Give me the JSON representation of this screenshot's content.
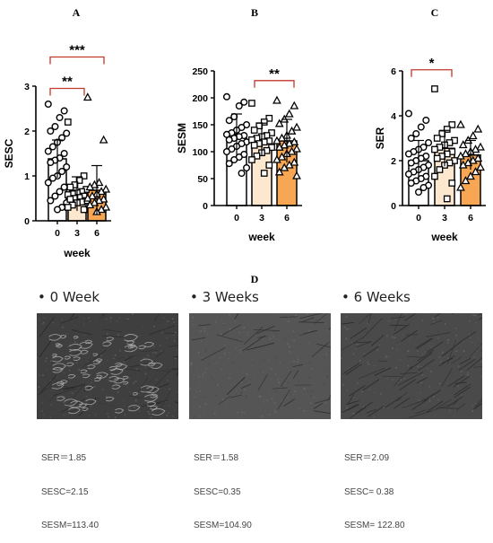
{
  "chart_data": [
    {
      "panel": "A",
      "type": "bar",
      "ylabel": "SESC",
      "xlabel": "week",
      "ylim": [
        0,
        3
      ],
      "yticks": [
        0,
        1,
        2,
        3
      ],
      "categories": [
        "0",
        "3",
        "6"
      ],
      "values": [
        1.38,
        0.6,
        0.68
      ],
      "errors": [
        0.42,
        0.38,
        0.55
      ],
      "marker": [
        "circle",
        "square",
        "triangle"
      ],
      "fill": [
        "#ffffff",
        "#fde7cf",
        "#f7a654"
      ],
      "points": [
        [
          2.6,
          2.45,
          2.3,
          2.1,
          2.0,
          1.95,
          1.85,
          1.75,
          1.65,
          1.55,
          1.5,
          1.4,
          1.35,
          1.3,
          1.2,
          1.1,
          1.0,
          0.95,
          0.85,
          0.75,
          0.65,
          0.55,
          0.45,
          0.4,
          0.3,
          0.25
        ],
        [
          2.2,
          1.0,
          0.9,
          0.8,
          0.75,
          0.7,
          0.65,
          0.62,
          0.6,
          0.58,
          0.55,
          0.52,
          0.5,
          0.48,
          0.45,
          0.42,
          0.4,
          0.35,
          0.3,
          0.25
        ],
        [
          2.75,
          1.8,
          0.85,
          0.8,
          0.75,
          0.7,
          0.65,
          0.6,
          0.55,
          0.5,
          0.48,
          0.45,
          0.4,
          0.35,
          0.3,
          0.25,
          0.2
        ]
      ],
      "significance": [
        {
          "from": 0,
          "to": 1,
          "label": "**",
          "y": 2.95
        },
        {
          "from": 0,
          "to": 2,
          "label": "***",
          "y": 3.65
        }
      ]
    },
    {
      "panel": "B",
      "type": "bar",
      "ylabel": "SESM",
      "xlabel": "week",
      "ylim": [
        0,
        250
      ],
      "yticks": [
        0,
        50,
        100,
        150,
        200,
        250
      ],
      "categories": [
        "0",
        "3",
        "6"
      ],
      "values": [
        132,
        123,
        120
      ],
      "errors": [
        38,
        30,
        40
      ],
      "marker": [
        "circle",
        "square",
        "triangle"
      ],
      "fill": [
        "#ffffff",
        "#fde7cf",
        "#f7a654"
      ],
      "points": [
        [
          202,
          192,
          185,
          165,
          158,
          150,
          145,
          140,
          135,
          132,
          130,
          128,
          125,
          122,
          118,
          115,
          110,
          105,
          100,
          95,
          90,
          85,
          78,
          70,
          60
        ],
        [
          190,
          162,
          155,
          148,
          140,
          135,
          130,
          128,
          125,
          122,
          120,
          118,
          115,
          112,
          108,
          102,
          98,
          92,
          85,
          75,
          60
        ],
        [
          195,
          185,
          170,
          160,
          152,
          145,
          138,
          130,
          125,
          120,
          118,
          115,
          112,
          108,
          105,
          100,
          96,
          90,
          85,
          80,
          75,
          70,
          62,
          55
        ]
      ],
      "significance": [
        {
          "from": 1,
          "to": 2,
          "label": "**",
          "y": 232
        }
      ]
    },
    {
      "panel": "C",
      "type": "bar",
      "ylabel": "SER",
      "xlabel": "week",
      "ylim": [
        0,
        6
      ],
      "yticks": [
        0,
        2,
        4,
        6
      ],
      "categories": [
        "0",
        "3",
        "6"
      ],
      "values": [
        2.0,
        2.55,
        2.25
      ],
      "errors": [
        0.9,
        0.8,
        0.65
      ],
      "marker": [
        "circle",
        "square",
        "triangle"
      ],
      "fill": [
        "#ffffff",
        "#fde7cf",
        "#f7a654"
      ],
      "points": [
        [
          4.1,
          3.8,
          3.5,
          3.2,
          3.0,
          2.8,
          2.6,
          2.5,
          2.4,
          2.3,
          2.2,
          2.1,
          2.0,
          1.9,
          1.8,
          1.7,
          1.6,
          1.5,
          1.4,
          1.3,
          1.2,
          1.1,
          1.0,
          0.9,
          0.8,
          0.6
        ],
        [
          5.2,
          3.6,
          3.4,
          3.2,
          3.0,
          2.9,
          2.8,
          2.7,
          2.6,
          2.5,
          2.4,
          2.3,
          2.2,
          2.1,
          2.0,
          1.9,
          1.8,
          1.6,
          1.3,
          1.0,
          0.3
        ],
        [
          3.6,
          3.4,
          3.1,
          2.9,
          2.7,
          2.6,
          2.5,
          2.4,
          2.3,
          2.2,
          2.1,
          2.0,
          1.9,
          1.8,
          1.7,
          1.5,
          1.3,
          1.1,
          0.8
        ]
      ],
      "significance": [
        {
          "from": 0,
          "to": 1,
          "label": "*",
          "y": 6.05
        }
      ]
    }
  ],
  "panel_d": {
    "letter": "D",
    "photos": [
      {
        "title": "• 0 Week",
        "ser": "SER＝1.85",
        "sesc": "SESC=2.15",
        "sesm": "SESM=113.40",
        "texture": "flaky"
      },
      {
        "title": "• 3 Weeks",
        "ser": "SER＝1.58",
        "sesc": "SESC=0.35",
        "sesm": "SESM=104.90",
        "texture": "smooth"
      },
      {
        "title": "• 6 Weeks",
        "ser": "SER＝2.09",
        "sesc": "SESC= 0.38",
        "sesm": "SESM= 122.80",
        "texture": "lined"
      }
    ]
  },
  "colors": {
    "axis": "#000000",
    "bar_0": "#ffffff",
    "bar_3": "#fde7cf",
    "bar_6": "#f7a654",
    "photo_dark": "#3c3c3c",
    "photo_mid": "#5a5a5a",
    "metrics_text": "#444444"
  }
}
